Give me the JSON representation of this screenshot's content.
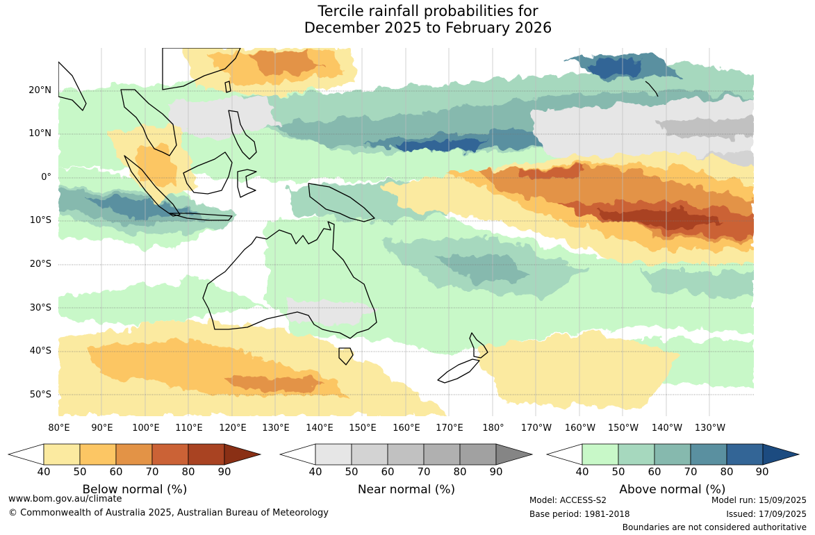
{
  "title": {
    "line1": "Tercile rainfall probabilities for",
    "line2": "December 2025 to February 2026"
  },
  "axes": {
    "lat_labels": [
      "20°N",
      "10°N",
      "0°",
      "10°S",
      "20°S",
      "30°S",
      "40°S",
      "50°S"
    ],
    "lon_labels": [
      "80°E",
      "90°E",
      "100°E",
      "110°E",
      "120°E",
      "130°E",
      "140°E",
      "150°E",
      "160°E",
      "170°E",
      "180°",
      "170°W",
      "160°W",
      "150°W",
      "140°W",
      "130°W"
    ]
  },
  "colorbars": [
    {
      "label": "Below normal (%)",
      "ticks": [
        "40",
        "50",
        "60",
        "70",
        "80",
        "90"
      ],
      "colors": [
        "#fbeaa0",
        "#fcc664",
        "#e39346",
        "#cb6236",
        "#a94322",
        "#8a3015"
      ]
    },
    {
      "label": "Near normal (%)",
      "ticks": [
        "40",
        "50",
        "60",
        "70",
        "80",
        "90"
      ],
      "colors": [
        "#e6e6e6",
        "#d3d3d3",
        "#c1c1c1",
        "#b0b0b0",
        "#a1a1a1",
        "#858585"
      ]
    },
    {
      "label": "Above normal (%)",
      "ticks": [
        "40",
        "50",
        "60",
        "70",
        "80",
        "90"
      ],
      "colors": [
        "#c8f8c8",
        "#a6d8be",
        "#86b9ae",
        "#5a90a0",
        "#336596",
        "#1c4b80"
      ]
    }
  ],
  "footer": {
    "website": "www.bom.gov.au/climate",
    "copyright": "© Commonwealth of Australia 2025, Australian Bureau of Meteorology",
    "model": "Model: ACCESS-S2",
    "base_period": "Base period: 1981-2018",
    "model_run": "Model run: 15/09/2025",
    "issued": "Issued: 17/09/2025",
    "disclaimer": "Boundaries are not considered authoritative"
  }
}
